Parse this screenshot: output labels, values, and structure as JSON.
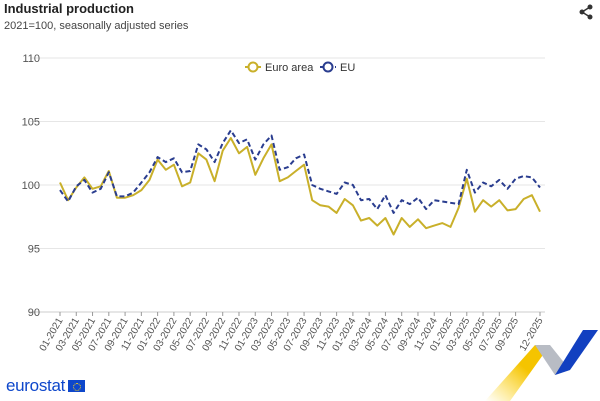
{
  "header": {
    "title": "Industrial production",
    "subtitle": "2021=100, seasonally adjusted series",
    "share_icon": "share-icon"
  },
  "footer": {
    "logo_text": "eurostat"
  },
  "colors": {
    "euro_area": "#c9b02a",
    "eu": "#2a3d8f",
    "grid": "#e6e6e6"
  },
  "chart_data": {
    "type": "line",
    "title": "Industrial production",
    "subtitle": "2021=100, seasonally adjusted series",
    "ylim": [
      90,
      110
    ],
    "yticks": [
      90,
      95,
      100,
      105,
      110
    ],
    "grid": true,
    "legend_position": "top-center",
    "x_start": "01-2021",
    "x_end": "12-2025",
    "xtick_labels": [
      "01-2021",
      "03-2021",
      "05-2021",
      "07-2021",
      "09-2021",
      "11-2021",
      "01-2022",
      "03-2022",
      "05-2022",
      "07-2022",
      "09-2022",
      "11-2022",
      "01-2023",
      "03-2023",
      "05-2023",
      "07-2023",
      "09-2023",
      "11-2023",
      "01-2024",
      "03-2024",
      "05-2024",
      "07-2024",
      "09-2024",
      "11-2024",
      "01-2025",
      "03-2025",
      "05-2025",
      "07-2025",
      "09-2025",
      "12-2025"
    ],
    "series": [
      {
        "name": "Euro area",
        "style": "solid",
        "color": "#c9b02a",
        "values": [
          100.2,
          98.8,
          99.8,
          100.6,
          99.7,
          99.9,
          101.1,
          99.0,
          99.0,
          99.2,
          99.6,
          100.4,
          102.0,
          101.2,
          101.6,
          99.9,
          100.2,
          102.5,
          102.0,
          100.3,
          102.7,
          103.7,
          102.5,
          103.0,
          100.8,
          102.1,
          103.2,
          100.3,
          100.6,
          101.1,
          101.6,
          98.8,
          98.4,
          98.3,
          97.8,
          98.9,
          98.4,
          97.2,
          97.4,
          96.8,
          97.4,
          96.1,
          97.4,
          96.7,
          97.3,
          96.6,
          96.8,
          97.0,
          96.7,
          98.2,
          100.5,
          97.9,
          98.8,
          98.3,
          98.8,
          98.0,
          98.1,
          98.9,
          99.2,
          97.9
        ]
      },
      {
        "name": "EU",
        "style": "dashed",
        "color": "#2a3d8f",
        "values": [
          99.6,
          98.7,
          99.9,
          100.4,
          99.4,
          99.7,
          101.0,
          99.1,
          99.1,
          99.4,
          100.2,
          101.0,
          102.2,
          101.8,
          102.1,
          101.0,
          101.1,
          103.2,
          102.8,
          101.8,
          103.3,
          104.3,
          103.3,
          103.6,
          102.0,
          103.2,
          103.9,
          101.2,
          101.4,
          102.1,
          102.4,
          100.0,
          99.7,
          99.5,
          99.3,
          100.2,
          100.0,
          98.8,
          98.9,
          98.1,
          99.2,
          97.8,
          98.8,
          98.5,
          99.0,
          98.1,
          98.8,
          98.7,
          98.6,
          98.5,
          101.2,
          99.4,
          100.2,
          99.9,
          100.4,
          99.7,
          100.5,
          100.7,
          100.6,
          99.8
        ]
      }
    ]
  }
}
